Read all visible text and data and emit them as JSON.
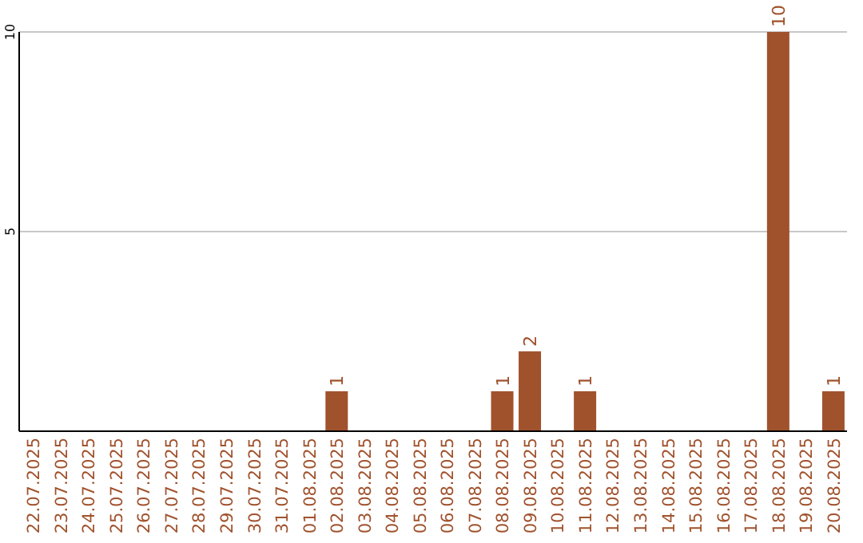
{
  "chart_data": {
    "type": "bar",
    "categories": [
      "22.07.2025",
      "23.07.2025",
      "24.07.2025",
      "25.07.2025",
      "26.07.2025",
      "27.07.2025",
      "28.07.2025",
      "29.07.2025",
      "30.07.2025",
      "31.07.2025",
      "01.08.2025",
      "02.08.2025",
      "03.08.2025",
      "04.08.2025",
      "05.08.2025",
      "06.08.2025",
      "07.08.2025",
      "08.08.2025",
      "09.08.2025",
      "10.08.2025",
      "11.08.2025",
      "12.08.2025",
      "13.08.2025",
      "14.08.2025",
      "15.08.2025",
      "16.08.2025",
      "17.08.2025",
      "18.08.2025",
      "19.08.2025",
      "20.08.2025"
    ],
    "values": [
      0,
      0,
      0,
      0,
      0,
      0,
      0,
      0,
      0,
      0,
      0,
      1,
      0,
      0,
      0,
      0,
      0,
      1,
      2,
      0,
      1,
      0,
      0,
      0,
      0,
      0,
      0,
      10,
      0,
      1
    ],
    "value_labels": [
      null,
      null,
      null,
      null,
      null,
      null,
      null,
      null,
      null,
      null,
      null,
      "1",
      null,
      null,
      null,
      null,
      null,
      "1",
      "2",
      null,
      "1",
      null,
      null,
      null,
      null,
      null,
      null,
      "10",
      null,
      "1"
    ],
    "color": "#a0522d",
    "ylim": [
      0,
      10
    ],
    "yticks": [
      5,
      10
    ],
    "grid": "y"
  }
}
